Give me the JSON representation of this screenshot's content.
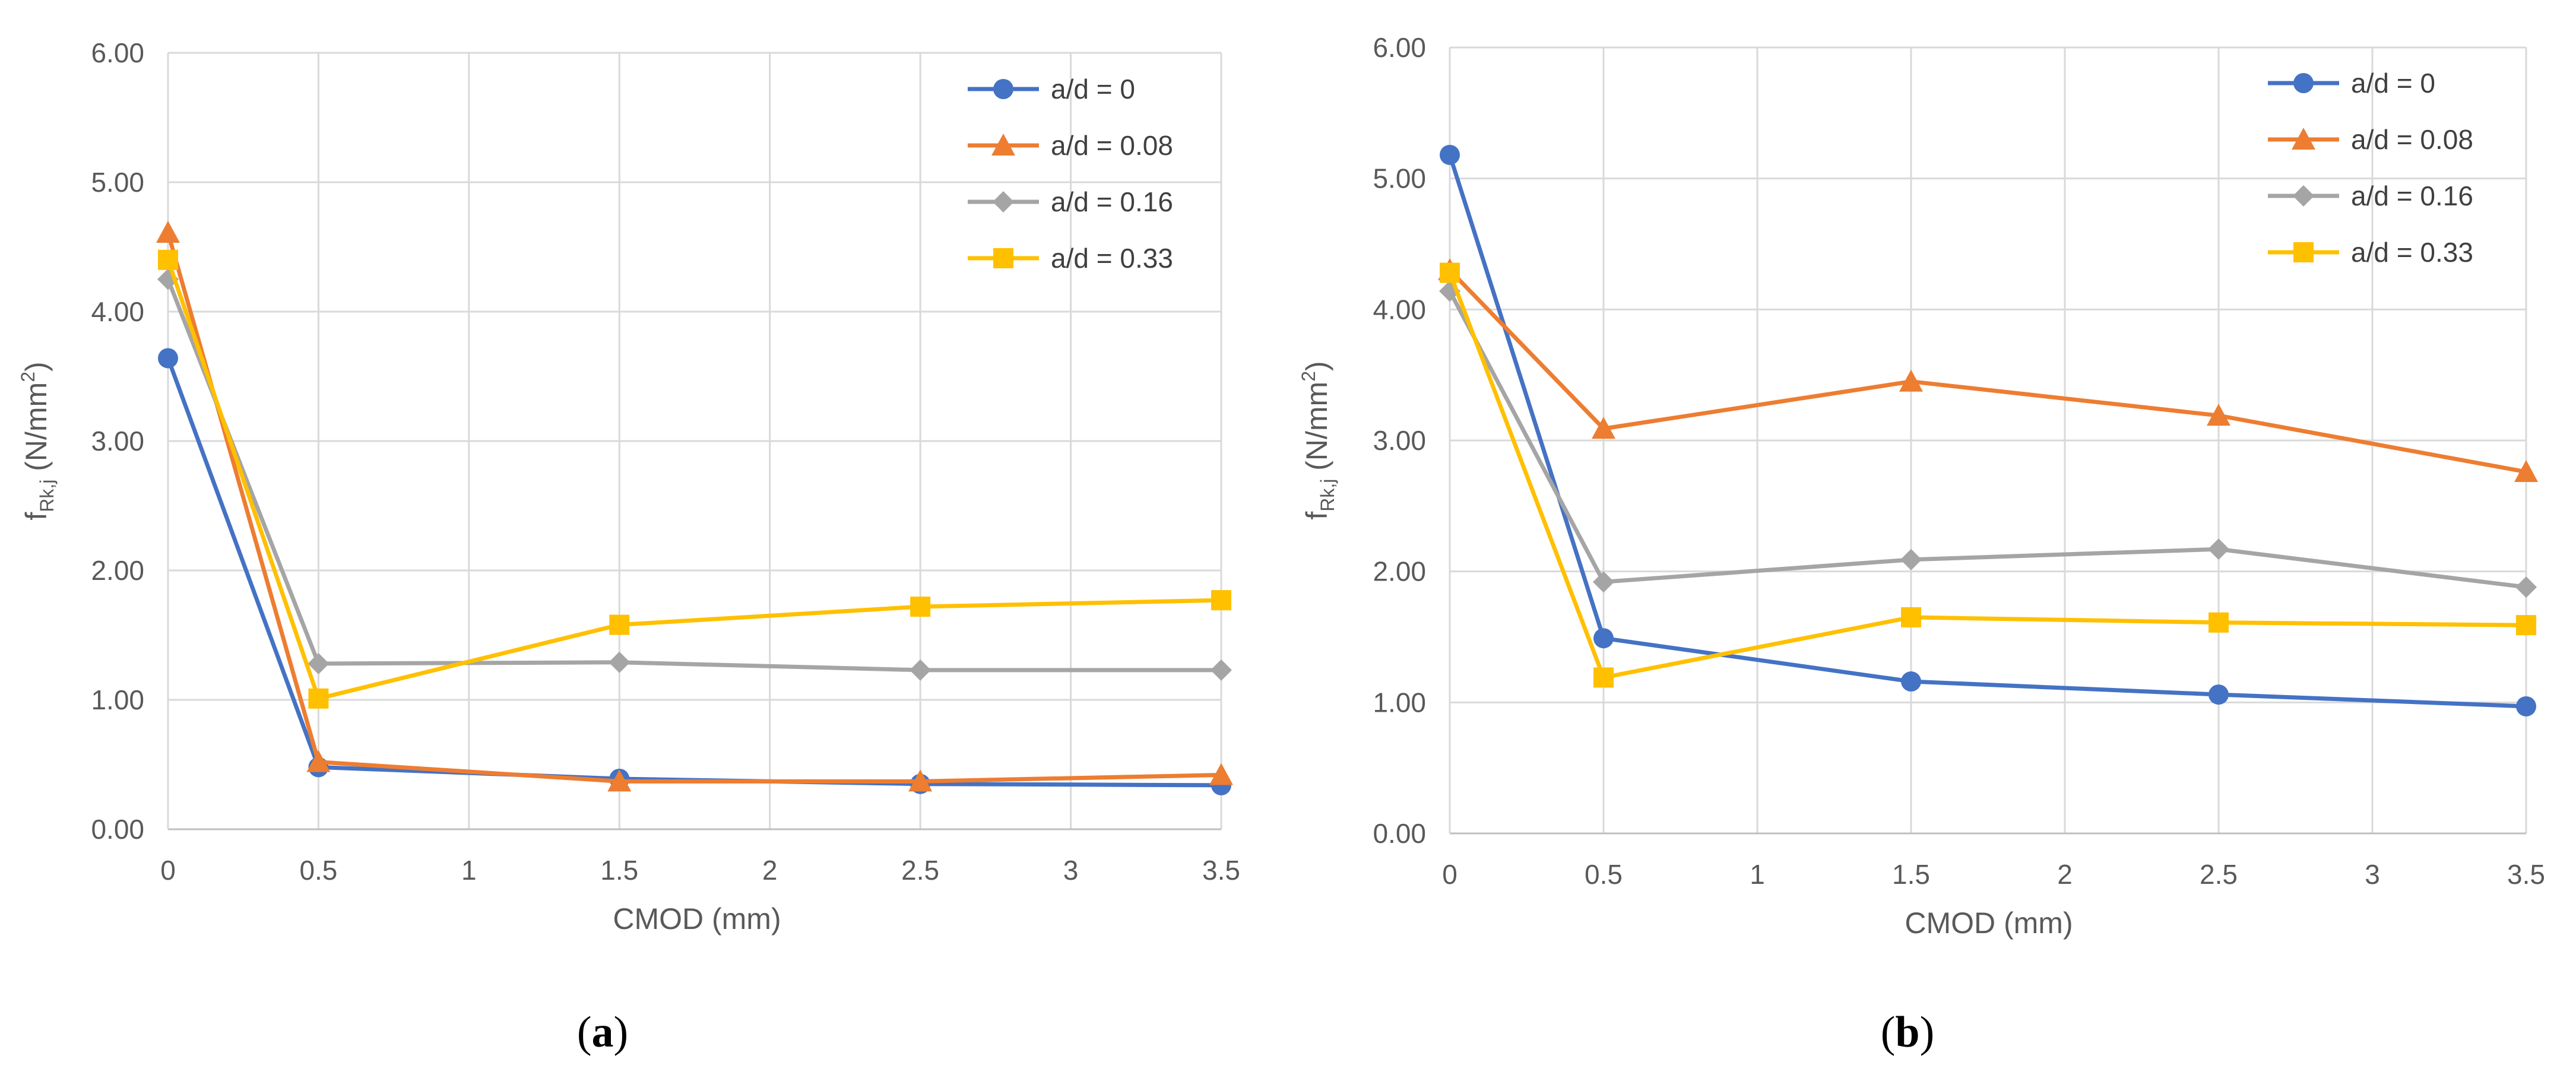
{
  "chart_data": [
    {
      "id": "a",
      "type": "line",
      "caption_letter": "a",
      "caption_open": "(",
      "caption_close": ")",
      "xlabel": "CMOD (mm)",
      "ylabel_main": "f",
      "ylabel_sub": "Rk,j",
      "ylabel_unit": " (N/mm",
      "ylabel_sup": "2",
      "ylabel_close": ")",
      "xlim": [
        0,
        3.5
      ],
      "ylim": [
        0,
        6
      ],
      "xticks": [
        "0",
        "0.5",
        "1",
        "1.5",
        "2",
        "2.5",
        "3",
        "3.5"
      ],
      "xtick_values": [
        0,
        0.5,
        1,
        1.5,
        2,
        2.5,
        3,
        3.5
      ],
      "yticks": [
        "0.00",
        "1.00",
        "2.00",
        "3.00",
        "4.00",
        "5.00",
        "6.00"
      ],
      "ytick_values": [
        0,
        1,
        2,
        3,
        4,
        5,
        6
      ],
      "grid": true,
      "legend_position": "top-right",
      "x": [
        0,
        0.5,
        1.5,
        2.5,
        3.5
      ],
      "series": [
        {
          "name": "a/d = 0",
          "color": "#4472C4",
          "marker": "circle",
          "values": [
            3.64,
            0.48,
            0.39,
            0.35,
            0.34
          ]
        },
        {
          "name": "a/d = 0.08",
          "color": "#ED7D31",
          "marker": "triangle",
          "values": [
            4.61,
            0.52,
            0.37,
            0.37,
            0.42
          ]
        },
        {
          "name": "a/d = 0.16",
          "color": "#A5A5A5",
          "marker": "diamond",
          "values": [
            4.25,
            1.28,
            1.29,
            1.23,
            1.23
          ]
        },
        {
          "name": "a/d = 0.33",
          "color": "#FFC000",
          "marker": "square",
          "values": [
            4.4,
            1.01,
            1.58,
            1.72,
            1.77
          ]
        }
      ]
    },
    {
      "id": "b",
      "type": "line",
      "caption_letter": "b",
      "caption_open": "(",
      "caption_close": ")",
      "xlabel": "CMOD (mm)",
      "ylabel_main": "f",
      "ylabel_sub": "Rk,j",
      "ylabel_unit": " (N/mm",
      "ylabel_sup": "2",
      "ylabel_close": ")",
      "xlim": [
        0,
        3.5
      ],
      "ylim": [
        0,
        6
      ],
      "xticks": [
        "0",
        "0.5",
        "1",
        "1.5",
        "2",
        "2.5",
        "3",
        "3.5"
      ],
      "xtick_values": [
        0,
        0.5,
        1,
        1.5,
        2,
        2.5,
        3,
        3.5
      ],
      "yticks": [
        "0.00",
        "1.00",
        "2.00",
        "3.00",
        "4.00",
        "5.00",
        "6.00"
      ],
      "ytick_values": [
        0,
        1,
        2,
        3,
        4,
        5,
        6
      ],
      "grid": true,
      "legend_position": "top-right",
      "x": [
        0,
        0.5,
        1.5,
        2.5,
        3.5
      ],
      "series": [
        {
          "name": "a/d = 0",
          "color": "#4472C4",
          "marker": "circle",
          "values": [
            5.18,
            1.49,
            1.16,
            1.06,
            0.97
          ]
        },
        {
          "name": "a/d = 0.08",
          "color": "#ED7D31",
          "marker": "triangle",
          "values": [
            4.3,
            3.09,
            3.45,
            3.19,
            2.76
          ]
        },
        {
          "name": "a/d = 0.16",
          "color": "#A5A5A5",
          "marker": "diamond",
          "values": [
            4.14,
            1.92,
            2.09,
            2.17,
            1.88
          ]
        },
        {
          "name": "a/d = 0.33",
          "color": "#FFC000",
          "marker": "square",
          "values": [
            4.28,
            1.19,
            1.65,
            1.61,
            1.59
          ]
        }
      ]
    }
  ]
}
